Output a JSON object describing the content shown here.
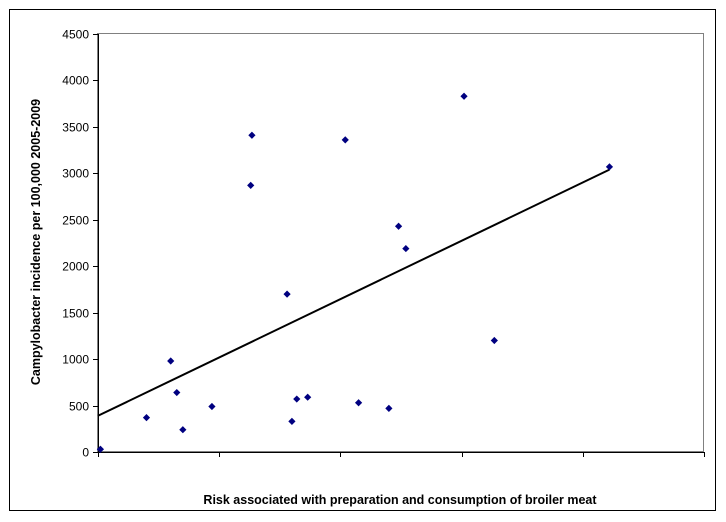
{
  "chart_data": {
    "type": "scatter",
    "title": "",
    "xlabel": "Risk associated with preparation and consumption of broiler meat",
    "ylabel": "Campylobacter incidence per 100,000 2005-2009",
    "xlim": [
      0,
      5
    ],
    "ylim": [
      0,
      4500
    ],
    "y_ticks": [
      0,
      500,
      1000,
      1500,
      2000,
      2500,
      3000,
      3500,
      4000,
      4500
    ],
    "x_ticks": [
      0,
      1,
      2,
      3,
      4,
      5
    ],
    "x_tick_labels_shown": false,
    "grid": false,
    "marker_color": "#000080",
    "trendline": {
      "type": "linear",
      "x": [
        0,
        4.22
      ],
      "y": [
        390,
        3040
      ],
      "color": "#000000"
    },
    "series": [
      {
        "name": "",
        "points": [
          {
            "x": 0.02,
            "y": 30
          },
          {
            "x": 0.4,
            "y": 370
          },
          {
            "x": 0.6,
            "y": 980
          },
          {
            "x": 0.65,
            "y": 640
          },
          {
            "x": 0.7,
            "y": 240
          },
          {
            "x": 0.94,
            "y": 490
          },
          {
            "x": 1.26,
            "y": 2870
          },
          {
            "x": 1.27,
            "y": 3410
          },
          {
            "x": 1.56,
            "y": 1700
          },
          {
            "x": 1.6,
            "y": 330
          },
          {
            "x": 1.64,
            "y": 570
          },
          {
            "x": 1.73,
            "y": 590
          },
          {
            "x": 2.04,
            "y": 3360
          },
          {
            "x": 2.15,
            "y": 530
          },
          {
            "x": 2.4,
            "y": 470
          },
          {
            "x": 2.48,
            "y": 2430
          },
          {
            "x": 2.54,
            "y": 2190
          },
          {
            "x": 3.02,
            "y": 3830
          },
          {
            "x": 3.27,
            "y": 1200
          },
          {
            "x": 4.22,
            "y": 3070
          }
        ]
      }
    ]
  }
}
